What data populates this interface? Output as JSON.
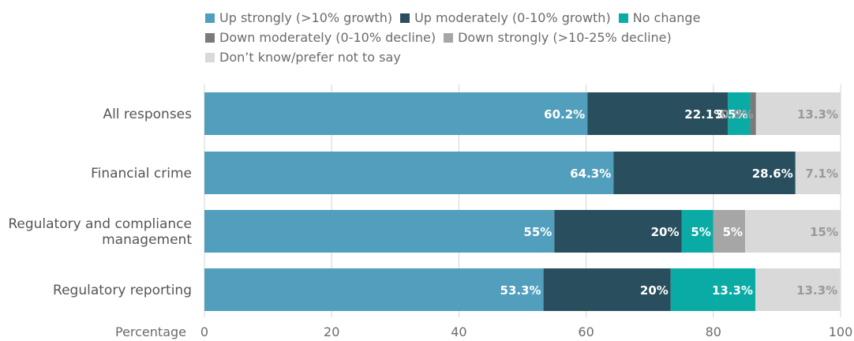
{
  "chart_data": {
    "type": "bar",
    "orientation": "horizontal",
    "stacked": true,
    "xlabel": "Percentage",
    "xlim": [
      0,
      100
    ],
    "xticks": [
      0,
      20,
      40,
      60,
      80,
      100
    ],
    "grid": true,
    "legend_position": "top",
    "categories": [
      [
        "All responses"
      ],
      [
        "Financial crime"
      ],
      [
        "Regulatory and compliance",
        "management"
      ],
      [
        "Regulatory reporting"
      ]
    ],
    "series": [
      {
        "name": "Up strongly (>10% growth)",
        "color": "#519fbc",
        "values": [
          60.2,
          64.3,
          55,
          53.3
        ],
        "labels": [
          "60.2%",
          "64.3%",
          "55%",
          "53.3%"
        ],
        "label_color": "#ffffff"
      },
      {
        "name": "Up moderately (0-10% growth)",
        "color": "#294f5e",
        "values": [
          22.1,
          28.6,
          20,
          20
        ],
        "labels": [
          "22.1%",
          "28.6%",
          "20%",
          "20%"
        ],
        "label_color": "#ffffff"
      },
      {
        "name": "No change",
        "color": "#0aaba5",
        "values": [
          3.5,
          0,
          5,
          13.3
        ],
        "labels": [
          "3.5%",
          "",
          "5%",
          "13.3%"
        ],
        "label_color": "#ffffff"
      },
      {
        "name": "Down moderately (0-10% decline)",
        "color": "#7a7a7a",
        "values": [
          0.9,
          0,
          0,
          0
        ],
        "labels": [
          "0.9%",
          "",
          "",
          ""
        ],
        "label_color": "#999999"
      },
      {
        "name": "Down strongly (>10-25% decline)",
        "color": "#a6a6a6",
        "values": [
          0,
          0,
          5,
          0
        ],
        "labels": [
          "",
          "",
          "5%",
          ""
        ],
        "label_color": "#ffffff"
      },
      {
        "name": "Don’t know/prefer not to say",
        "color": "#d9d9d9",
        "values": [
          13.3,
          7.1,
          15,
          13.3
        ],
        "labels": [
          "13.3%",
          "7.1%",
          "15%",
          "13.3%"
        ],
        "label_color": "#999999"
      }
    ]
  }
}
